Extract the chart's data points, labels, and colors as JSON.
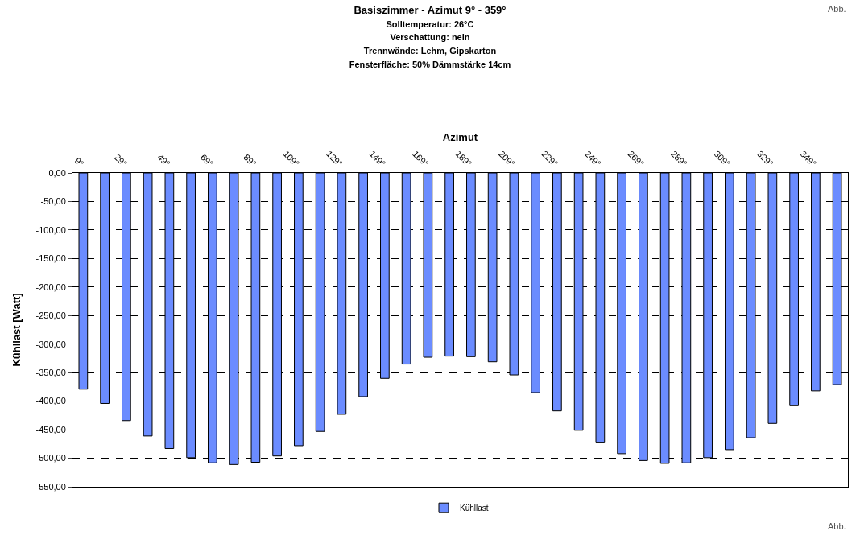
{
  "chart_data": {
    "type": "bar",
    "title": "Basiszimmer - Azimut 9° - 359°",
    "subtitle": "Solltemperatur: 26°C\nVerschattung: nein\nTrennwände: Lehm, Gipskarton\nFensterfläche: 50% Dämmstärke 14cm",
    "xlabel": "Azimut",
    "ylabel": "Kühllast [Watt]",
    "annotations": [
      "Abb.",
      "Abb."
    ],
    "categories": [
      "9°",
      null,
      "29°",
      null,
      "49°",
      null,
      "69°",
      null,
      "89°",
      null,
      "109°",
      null,
      "129°",
      null,
      "149°",
      null,
      "169°",
      null,
      "189°",
      null,
      "209°",
      null,
      "229°",
      null,
      "249°",
      null,
      "269°",
      null,
      "289°",
      null,
      "309°",
      null,
      "329°",
      null,
      "349°",
      null
    ],
    "series": [
      {
        "name": "Kühllast",
        "color": "#6b8cff",
        "values": [
          -379,
          -404,
          -434,
          -461,
          -483,
          -499,
          -508,
          -511,
          -507,
          -496,
          -478,
          -453,
          -423,
          -392,
          -360,
          -335,
          -323,
          -321,
          -322,
          -331,
          -354,
          -385,
          -417,
          -451,
          -473,
          -492,
          -504,
          -509,
          -508,
          -499,
          -485,
          -464,
          -439,
          -408,
          -382,
          -371
        ]
      }
    ],
    "ylim": [
      -550,
      0
    ],
    "yticks": [
      {
        "value": 0,
        "label": "0,00"
      },
      {
        "value": -50,
        "label": "-50,00"
      },
      {
        "value": -100,
        "label": "-100,00"
      },
      {
        "value": -150,
        "label": "-150,00"
      },
      {
        "value": -200,
        "label": "-200,00"
      },
      {
        "value": -250,
        "label": "-250,00"
      },
      {
        "value": -300,
        "label": "-300,00"
      },
      {
        "value": -350,
        "label": "-350,00"
      },
      {
        "value": -400,
        "label": "-400,00"
      },
      {
        "value": -450,
        "label": "-450,00"
      },
      {
        "value": -500,
        "label": "-500,00"
      },
      {
        "value": -550,
        "label": "-550,00"
      }
    ],
    "grid": "y",
    "legend": "bottom"
  }
}
